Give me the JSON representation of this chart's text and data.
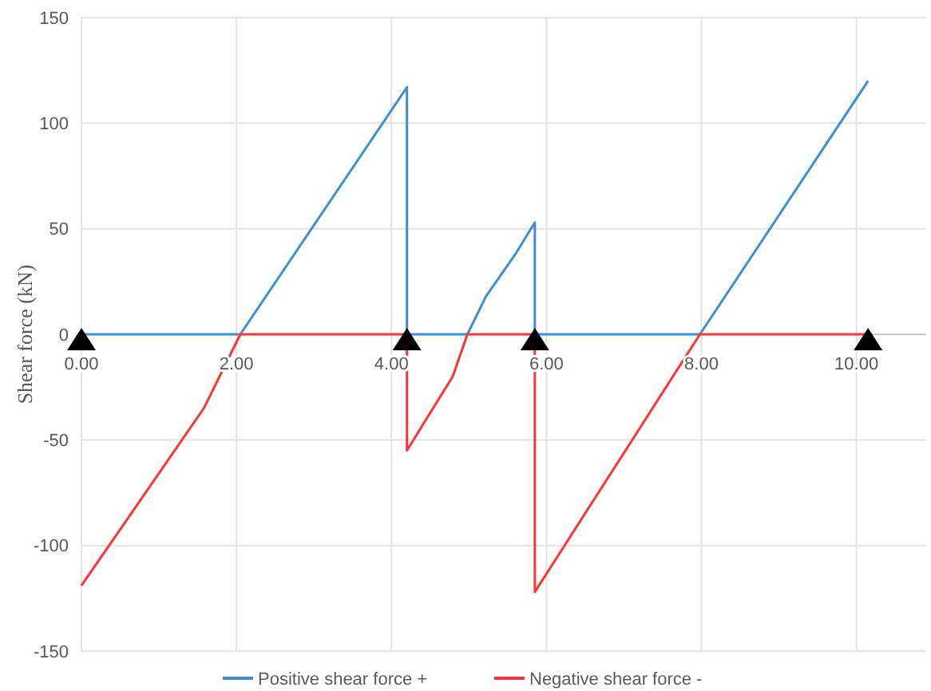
{
  "chart_data": {
    "type": "line",
    "ylabel": "Shear  force (kN)",
    "xlim": [
      0,
      10.9
    ],
    "xticks": [
      {
        "value": 0,
        "label": "0.00"
      },
      {
        "value": 2,
        "label": "2.00"
      },
      {
        "value": 4,
        "label": "4.00"
      },
      {
        "value": 6,
        "label": "6.00"
      },
      {
        "value": 8,
        "label": "8.00"
      },
      {
        "value": 10,
        "label": "10.00"
      }
    ],
    "ylim": [
      -150,
      150
    ],
    "yticks": [
      -150,
      -100,
      -50,
      0,
      50,
      100,
      150
    ],
    "grid": true,
    "legend": "bottom",
    "marker": "none",
    "line_style": "solid",
    "series": [
      {
        "name": "Positive shear force +",
        "color": "#3b8fd4",
        "x": [
          0,
          2.05,
          4.2,
          4.2,
          4.98,
          5.22,
          5.6,
          5.85,
          5.85,
          7.98,
          10.15
        ],
        "values": [
          0,
          0,
          117,
          0,
          0,
          18,
          38,
          53,
          0,
          0,
          120
        ]
      },
      {
        "name": "Negative shear force -",
        "color": "#ff3333",
        "x": [
          0,
          1.58,
          2.05,
          4.2,
          4.2,
          4.79,
          4.98,
          5.85,
          5.85,
          7.98,
          10.15
        ],
        "values": [
          -119,
          -35,
          0,
          0,
          -55,
          -20,
          0,
          0,
          -122,
          0,
          0
        ]
      }
    ]
  }
}
